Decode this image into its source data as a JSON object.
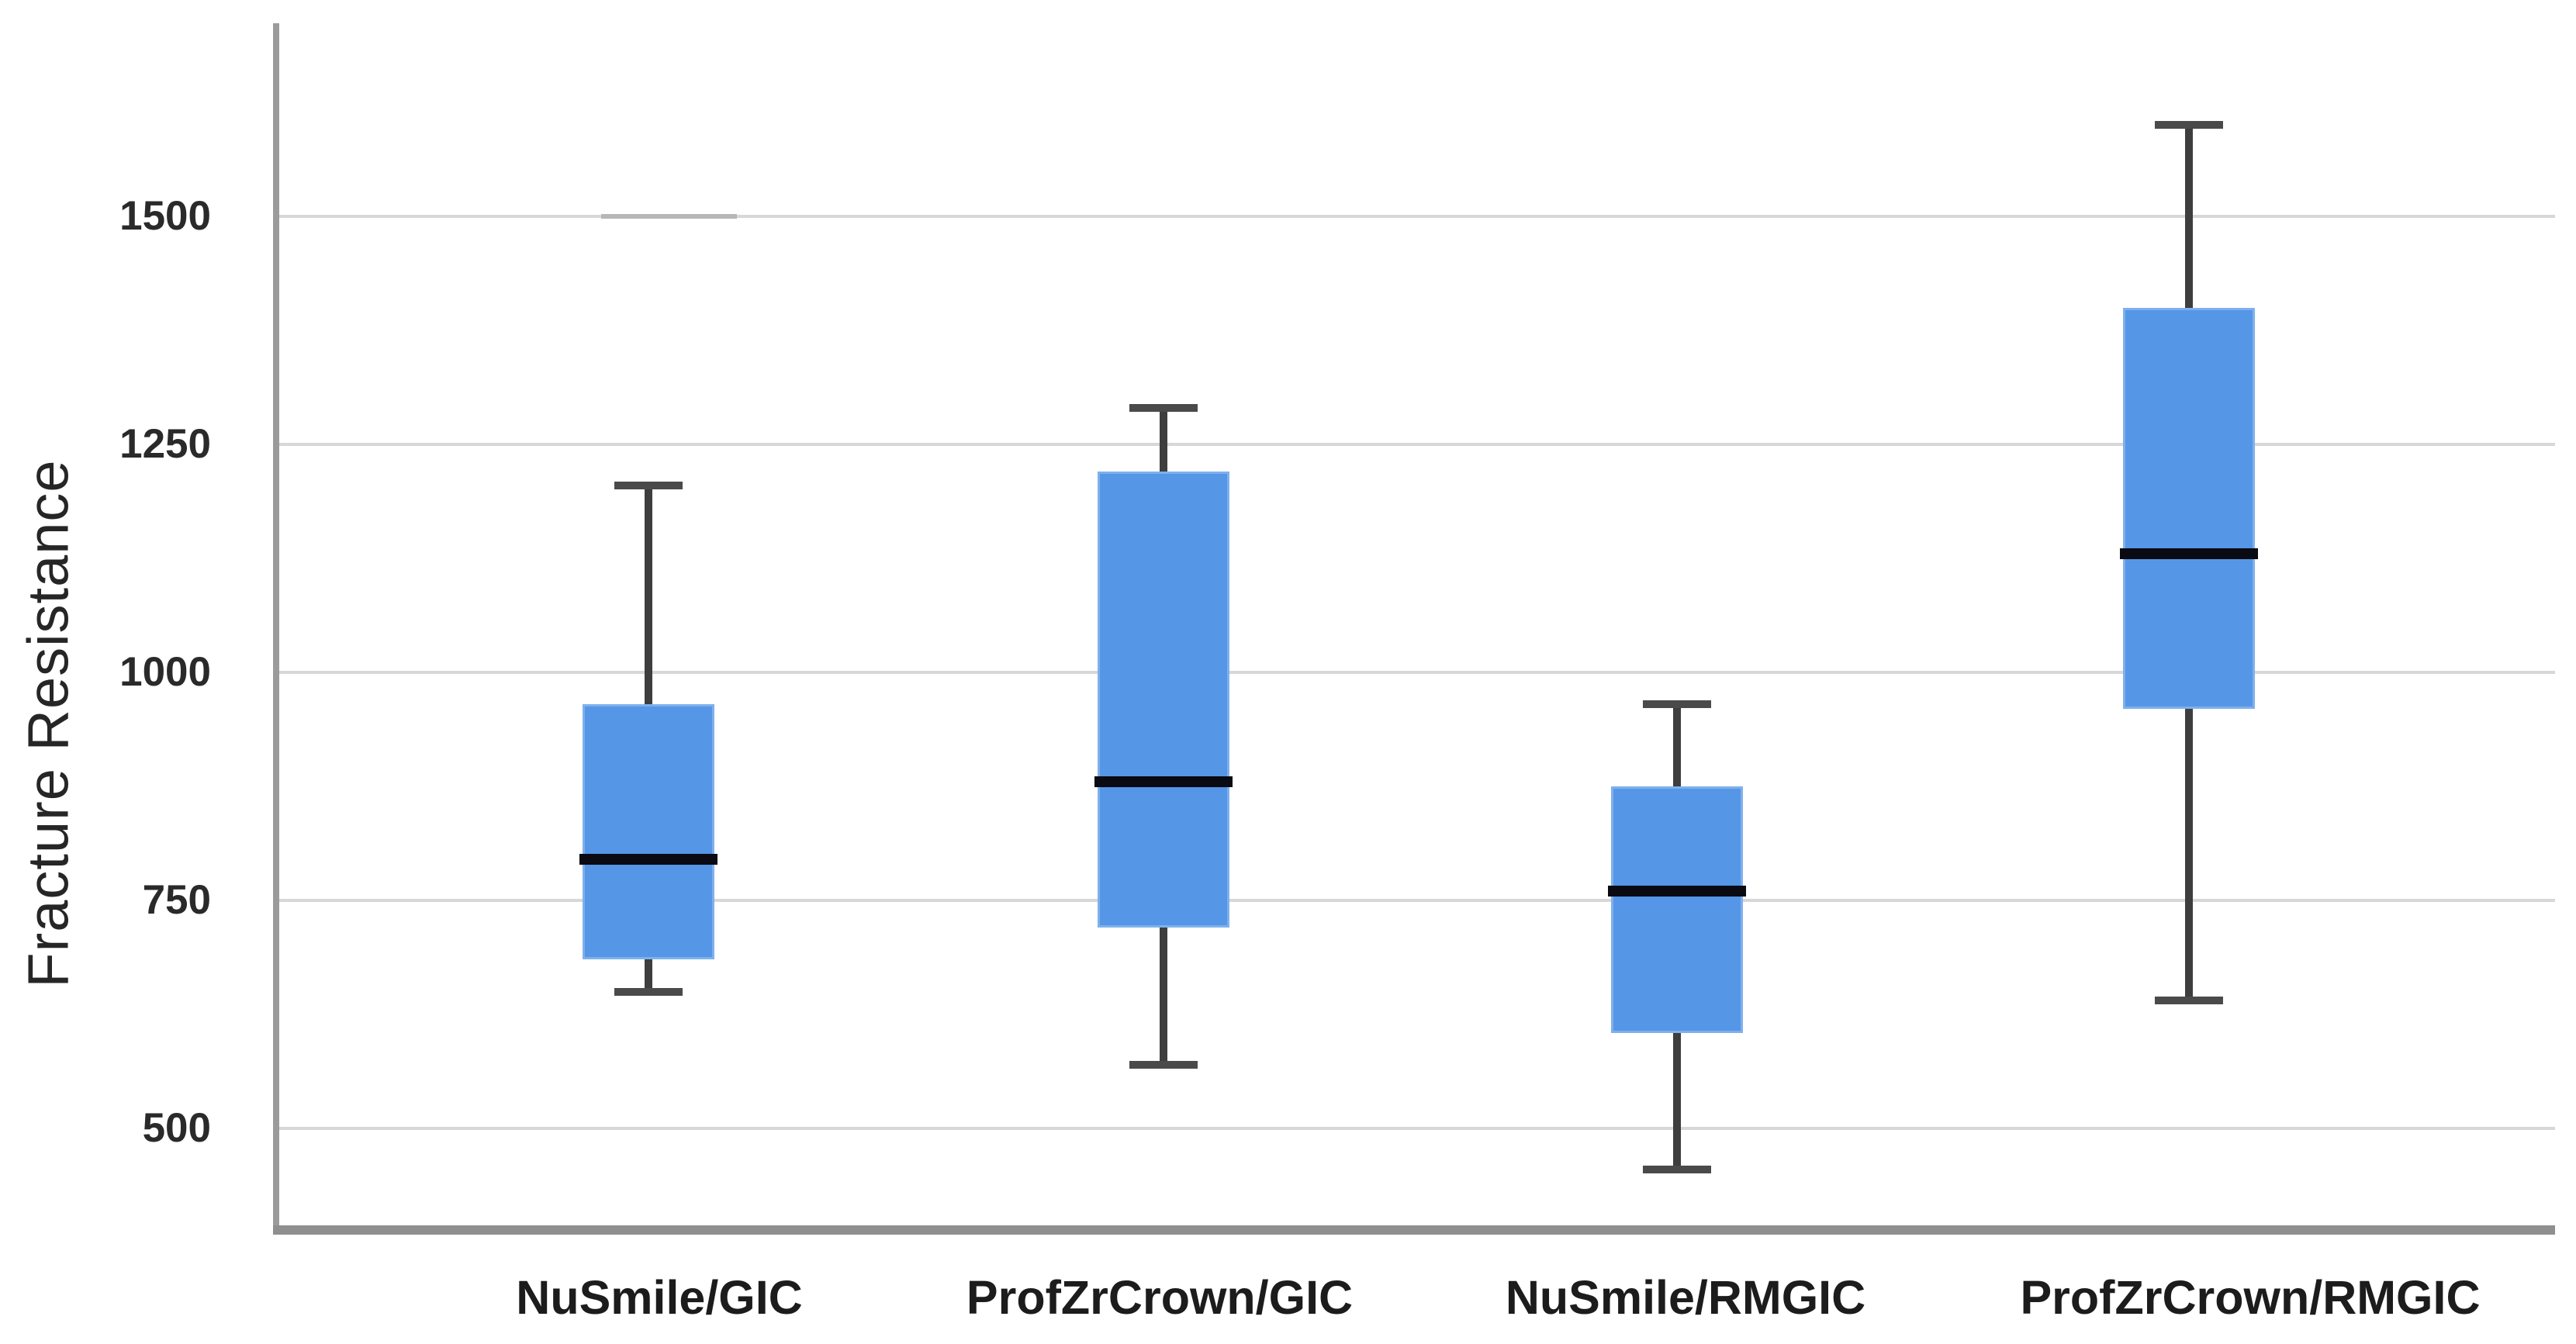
{
  "chart_data": {
    "type": "box",
    "title": "",
    "xlabel": "",
    "ylabel": "Fracture Resistance",
    "yticks": [
      1500,
      1250,
      1000,
      750,
      500
    ],
    "ylim": [
      390,
      1710
    ],
    "grid": "horizontal",
    "legend": "none",
    "categories": [
      "NuSmile/GIC",
      "ProfZrCrown/GIC",
      "NuSmile/RMGIC",
      "ProfZrCrown/RMGIC"
    ],
    "series": [
      {
        "category": "NuSmile/GIC",
        "min": 650,
        "q1": 685,
        "median": 795,
        "q3": 965,
        "max": 1205
      },
      {
        "category": "ProfZrCrown/GIC",
        "min": 570,
        "q1": 720,
        "median": 880,
        "q3": 1220,
        "max": 1290
      },
      {
        "category": "NuSmile/RMGIC",
        "min": 455,
        "q1": 605,
        "median": 760,
        "q3": 875,
        "max": 965
      },
      {
        "category": "ProfZrCrown/RMGIC",
        "min": 640,
        "q1": 960,
        "median": 1130,
        "q3": 1400,
        "max": 1600
      }
    ],
    "colors": {
      "box_fill": "#5596e6",
      "box_edge": "#7fb0ec",
      "median": "#0a0a12",
      "whisker": "#3e3e3e",
      "whisker_cap": "#4a4a4a",
      "gridline": "#d7d7d7",
      "y_axis": "#9b9b9b",
      "x_axis": "#8f8f8f",
      "text": "#262626",
      "background": "#ffffff"
    }
  }
}
